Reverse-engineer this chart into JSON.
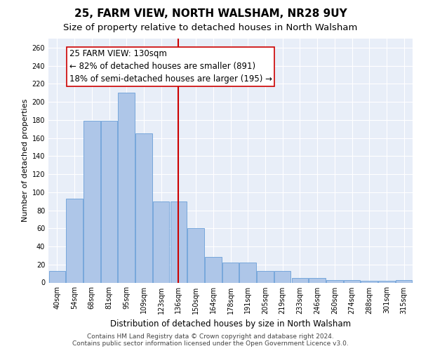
{
  "title1": "25, FARM VIEW, NORTH WALSHAM, NR28 9UY",
  "title2": "Size of property relative to detached houses in North Walsham",
  "xlabel": "Distribution of detached houses by size in North Walsham",
  "ylabel": "Number of detached properties",
  "categories": [
    "40sqm",
    "54sqm",
    "68sqm",
    "81sqm",
    "95sqm",
    "109sqm",
    "123sqm",
    "136sqm",
    "150sqm",
    "164sqm",
    "178sqm",
    "191sqm",
    "205sqm",
    "219sqm",
    "233sqm",
    "246sqm",
    "260sqm",
    "274sqm",
    "288sqm",
    "301sqm",
    "315sqm"
  ],
  "values": [
    13,
    93,
    179,
    179,
    210,
    165,
    90,
    90,
    60,
    28,
    22,
    22,
    13,
    13,
    5,
    5,
    3,
    3,
    2,
    2,
    3
  ],
  "bar_color": "#aec6e8",
  "bar_edge_color": "#6a9fd8",
  "vline_x": 7,
  "annotation_title": "25 FARM VIEW: 130sqm",
  "annotation_line1": "← 82% of detached houses are smaller (891)",
  "annotation_line2": "18% of semi-detached houses are larger (195) →",
  "vline_color": "#cc0000",
  "box_edge_color": "#cc0000",
  "ylim": [
    0,
    270
  ],
  "yticks": [
    0,
    20,
    40,
    60,
    80,
    100,
    120,
    140,
    160,
    180,
    200,
    220,
    240,
    260
  ],
  "footer1": "Contains HM Land Registry data © Crown copyright and database right 2024.",
  "footer2": "Contains public sector information licensed under the Open Government Licence v3.0.",
  "bg_color": "#e8eef8",
  "title1_fontsize": 11,
  "title2_fontsize": 9.5,
  "annotation_fontsize": 8.5,
  "footer_fontsize": 6.5,
  "ylabel_fontsize": 8,
  "xlabel_fontsize": 8.5,
  "tick_fontsize": 7
}
